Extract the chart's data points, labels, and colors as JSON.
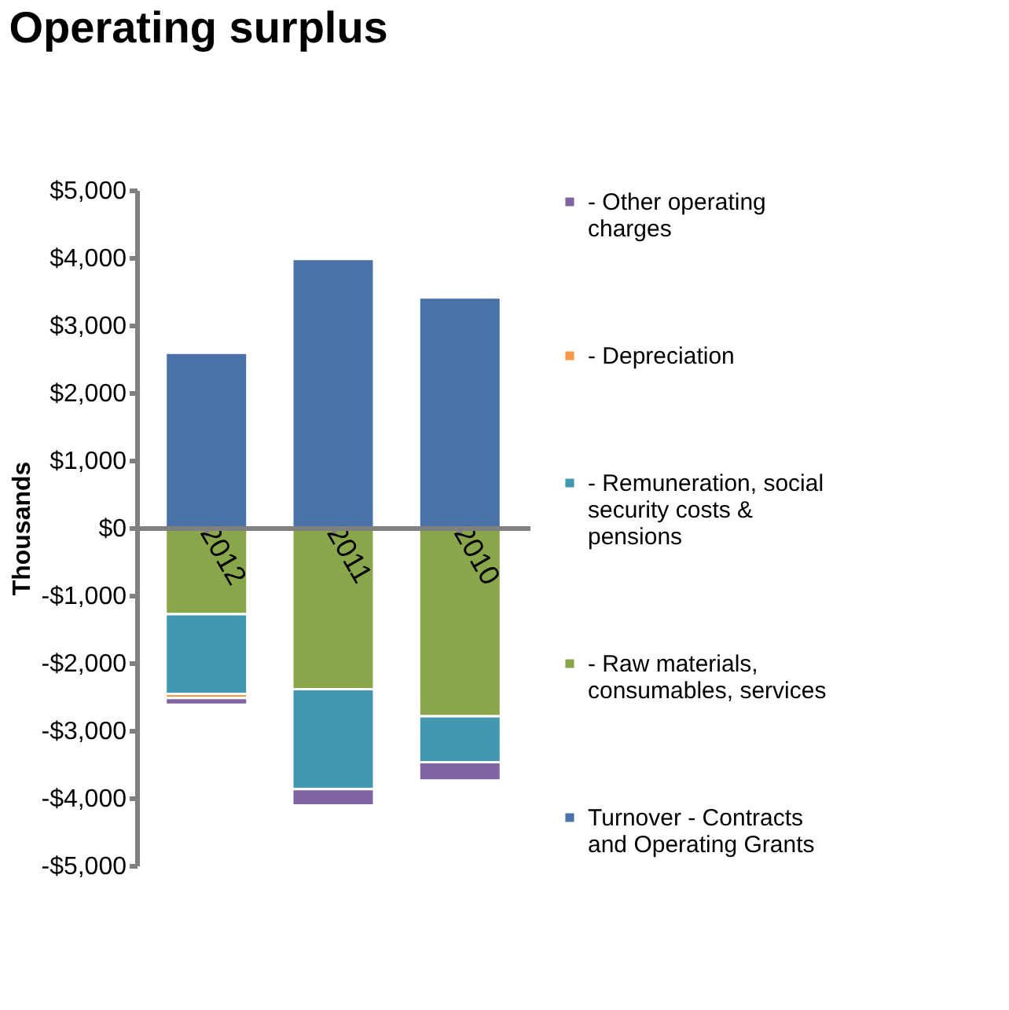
{
  "chart_data": {
    "type": "bar",
    "title": "Operating surplus",
    "ylabel": "Thousands",
    "categories": [
      "2012",
      "2011",
      "2010"
    ],
    "stacked": true,
    "series": [
      {
        "name": "Turnover -  Contracts and Operating Grants",
        "color": "#4a72a8",
        "values": [
          2590,
          3980,
          3410
        ]
      },
      {
        "name": "- Raw materials, consumables, services",
        "color": "#8aa64b",
        "values": [
          -1280,
          -2390,
          -2790
        ]
      },
      {
        "name": "- Remuneration, social security costs & pensions",
        "color": "#4198af",
        "values": [
          -1180,
          -1480,
          -680
        ]
      },
      {
        "name": "- Depreciation",
        "color": "#f79646",
        "values": [
          -60,
          null,
          null
        ]
      },
      {
        "name": "- Other operating charges",
        "color": "#8064a2",
        "values": [
          -100,
          -240,
          -270
        ]
      }
    ],
    "ylim": [
      -5000,
      5000
    ],
    "yticks": [
      {
        "value": -5000,
        "label": "-$5,000"
      },
      {
        "value": -4000,
        "label": "-$4,000"
      },
      {
        "value": -3000,
        "label": "-$3,000"
      },
      {
        "value": -2000,
        "label": "-$2,000"
      },
      {
        "value": -1000,
        "label": "-$1,000"
      },
      {
        "value": 0,
        "label": "$0"
      },
      {
        "value": 1000,
        "label": "$1,000"
      },
      {
        "value": 2000,
        "label": "$2,000"
      },
      {
        "value": 3000,
        "label": "$3,000"
      },
      {
        "value": 4000,
        "label": "$4,000"
      },
      {
        "value": 5000,
        "label": "$5,000"
      }
    ],
    "grid": false,
    "legend": "right"
  }
}
